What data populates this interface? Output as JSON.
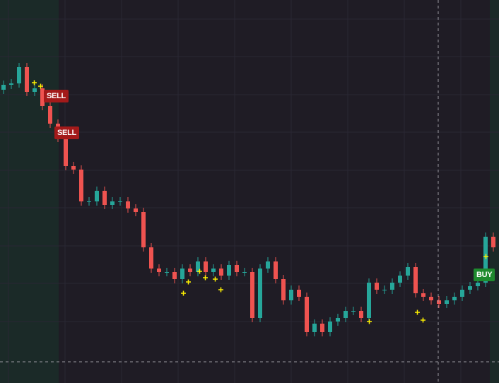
{
  "chart_data": {
    "type": "candlestick",
    "up_color": "#26a69a",
    "down_color": "#ef5350",
    "ylim": [
      0,
      542
    ],
    "open": [
      415,
      422,
      424,
      447,
      412,
      417,
      392,
      367,
      347,
      307,
      302,
      257,
      257,
      272,
      252,
      257,
      257,
      247,
      242,
      192,
      162,
      157,
      157,
      147,
      162,
      157,
      172,
      157,
      162,
      152,
      167,
      157,
      157,
      92,
      162,
      172,
      147,
      117,
      132,
      122,
      72,
      84,
      72,
      87,
      92,
      102,
      102,
      92,
      142,
      132,
      132,
      142,
      152,
      164,
      127,
      122,
      117,
      112,
      117,
      122,
      132,
      137,
      142,
      207
    ],
    "high": [
      428,
      430,
      453,
      453,
      423,
      423,
      398,
      373,
      353,
      313,
      308,
      263,
      278,
      278,
      263,
      263,
      263,
      253,
      248,
      198,
      168,
      163,
      163,
      168,
      168,
      178,
      178,
      168,
      168,
      173,
      173,
      163,
      163,
      168,
      178,
      178,
      153,
      138,
      138,
      128,
      90,
      90,
      93,
      98,
      108,
      108,
      108,
      148,
      148,
      138,
      148,
      158,
      170,
      170,
      133,
      128,
      123,
      123,
      128,
      138,
      143,
      148,
      213,
      213
    ],
    "low": [
      409,
      416,
      418,
      406,
      406,
      386,
      361,
      341,
      301,
      296,
      251,
      251,
      251,
      246,
      246,
      251,
      241,
      236,
      186,
      156,
      151,
      151,
      141,
      141,
      151,
      151,
      151,
      151,
      146,
      146,
      151,
      151,
      86,
      86,
      156,
      141,
      111,
      111,
      116,
      66,
      66,
      66,
      66,
      81,
      86,
      96,
      86,
      86,
      126,
      126,
      126,
      136,
      146,
      121,
      116,
      111,
      106,
      106,
      111,
      116,
      126,
      131,
      136,
      186
    ],
    "close": [
      422,
      424,
      447,
      412,
      417,
      392,
      367,
      347,
      307,
      302,
      257,
      257,
      272,
      252,
      257,
      257,
      247,
      242,
      192,
      162,
      157,
      157,
      147,
      162,
      157,
      172,
      157,
      162,
      152,
      167,
      157,
      157,
      92,
      162,
      172,
      147,
      117,
      132,
      122,
      72,
      84,
      72,
      87,
      92,
      102,
      102,
      92,
      142,
      132,
      132,
      142,
      152,
      164,
      127,
      122,
      117,
      112,
      117,
      122,
      132,
      137,
      142,
      207,
      192
    ],
    "signals": [
      "SELL",
      "SELL",
      "BUY"
    ]
  }
}
